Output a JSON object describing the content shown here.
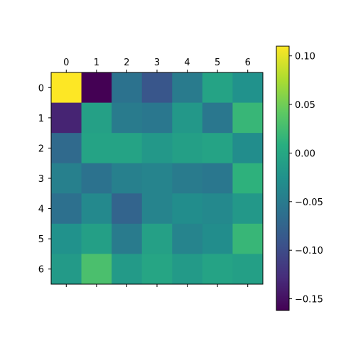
{
  "chart_data": {
    "type": "heatmap",
    "title": "",
    "xlabel": "",
    "ylabel": "",
    "x_tick_labels": [
      "0",
      "1",
      "2",
      "3",
      "4",
      "5",
      "6"
    ],
    "y_tick_labels": [
      "0",
      "1",
      "2",
      "3",
      "4",
      "5",
      "6"
    ],
    "x_ticks_position": "top",
    "colormap": "viridis",
    "vmin": -0.162,
    "vmax": 0.11,
    "values": [
      [
        0.11,
        -0.162,
        -0.06,
        -0.09,
        -0.05,
        -0.005,
        -0.025
      ],
      [
        -0.135,
        -0.008,
        -0.05,
        -0.055,
        -0.018,
        -0.055,
        0.018
      ],
      [
        -0.068,
        -0.005,
        -0.005,
        -0.018,
        -0.01,
        -0.005,
        -0.03
      ],
      [
        -0.045,
        -0.06,
        -0.045,
        -0.04,
        -0.05,
        -0.055,
        0.012
      ],
      [
        -0.062,
        -0.035,
        -0.075,
        -0.04,
        -0.03,
        -0.035,
        -0.018
      ],
      [
        -0.025,
        -0.01,
        -0.05,
        -0.008,
        -0.04,
        -0.03,
        0.018
      ],
      [
        -0.015,
        0.03,
        -0.015,
        -0.002,
        -0.015,
        -0.005,
        -0.01
      ]
    ],
    "colorbar": {
      "ticks": [
        0.1,
        0.05,
        0.0,
        -0.05,
        -0.1,
        -0.15
      ],
      "tick_labels": [
        "0.10",
        "0.05",
        "0.00",
        "−0.05",
        "−0.10",
        "−0.15"
      ]
    }
  }
}
